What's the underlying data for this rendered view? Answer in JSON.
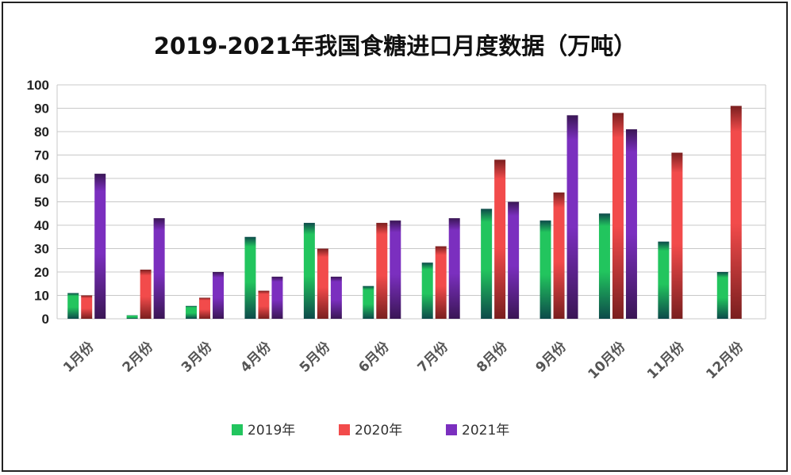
{
  "chart_data": {
    "type": "bar",
    "title": "2019-2021年我国食糖进口月度数据（万吨）",
    "xlabel": "",
    "ylabel": "",
    "ylim": [
      0,
      100
    ],
    "yticks": [
      "0",
      "10",
      "20",
      "30",
      "40",
      "50",
      "60",
      "70",
      "80",
      "90",
      "100"
    ],
    "grid": true,
    "legend_position": "bottom",
    "categories": [
      "1月份",
      "2月份",
      "3月份",
      "4月份",
      "5月份",
      "6月份",
      "7月份",
      "8月份",
      "9月份",
      "10月份",
      "11月份",
      "12月份"
    ],
    "series": [
      {
        "name": "2019年",
        "color": "#22c55e",
        "dark": "#0d4a4a",
        "values": [
          11,
          1.5,
          5.5,
          35,
          41,
          14,
          24,
          47,
          42,
          45,
          33,
          20
        ]
      },
      {
        "name": "2020年",
        "color": "#f24b4b",
        "dark": "#7a1f1f",
        "values": [
          10,
          21,
          9,
          12,
          30,
          41,
          31,
          68,
          54,
          88,
          71,
          91
        ]
      },
      {
        "name": "2021年",
        "color": "#7b2fbf",
        "dark": "#3a1655",
        "values": [
          62,
          43,
          20,
          18,
          18,
          42,
          43,
          50,
          87,
          81,
          null,
          null
        ]
      }
    ]
  }
}
